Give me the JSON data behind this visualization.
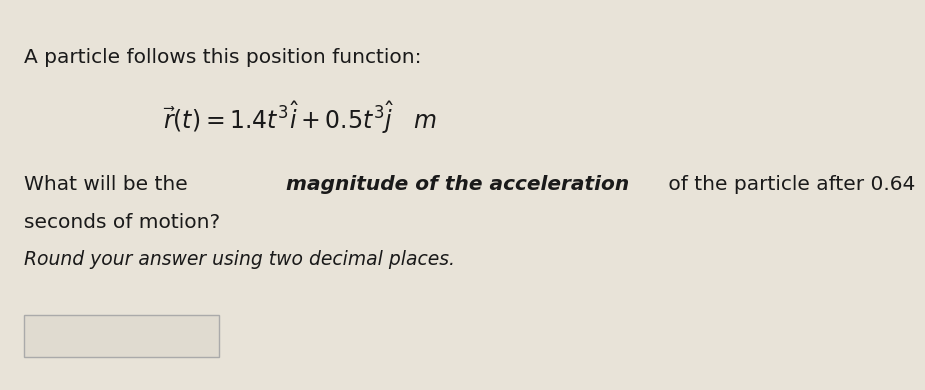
{
  "background_color": "#e8e3d8",
  "line1": "A particle follows this position function:",
  "formula": "$\\vec{r}(t) = 1.4t^3\\hat{i}+0.5t^3\\hat{j}$   $m$",
  "line3_pre": "What will be the ",
  "line3_bold": "magnitude of the acceleration",
  "line3_post": " of the particle after 0.64",
  "line4": "seconds of motion?",
  "line5": "Round your answer using two decimal places.",
  "font_size_main": 14.5,
  "font_size_math": 17,
  "font_size_italic": 13.5,
  "text_color": "#1a1a1a",
  "box_edge_color": "#aaaaaa",
  "box_face_color": "#e0dbd0"
}
